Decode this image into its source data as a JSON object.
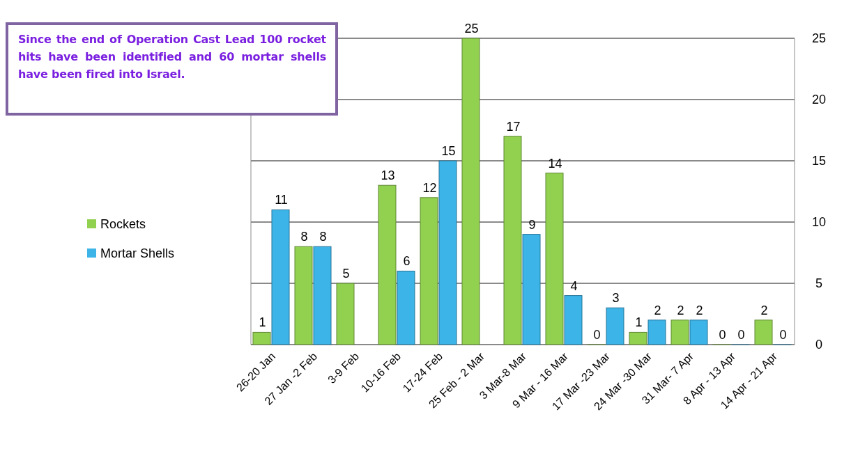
{
  "chart_data": {
    "type": "bar",
    "categories": [
      "26-20 Jan",
      "27 Jan -2 Feb",
      "3-9 Feb",
      "10-16 Feb",
      "17-24 Feb",
      "25 Feb - 2 Mar",
      "3 Mar-8 Mar",
      "9 Mar - 16 Mar",
      "17 Mar -23 Mar",
      "24 Mar -30 Mar",
      "31 Mar- 7 Apr",
      "8 Apr - 13 Apr",
      "14 Apr - 21 Apr"
    ],
    "series": [
      {
        "name": "Rockets",
        "color": "#92d050",
        "values": [
          1,
          8,
          5,
          13,
          12,
          25,
          17,
          14,
          0,
          1,
          2,
          0,
          2
        ]
      },
      {
        "name": "Mortar Shells",
        "color": "#3cb4e8",
        "values": [
          11,
          8,
          null,
          6,
          15,
          null,
          9,
          4,
          3,
          2,
          2,
          0,
          0
        ]
      }
    ],
    "ylim": [
      0,
      25
    ],
    "yticks": [
      0,
      5,
      10,
      15,
      20,
      25
    ],
    "grid": "y",
    "legend": "left",
    "data_labels": true,
    "annotations": [
      "Since the end of Operation Cast Lead 100 rocket hits have been identified and 60 mortar shells have been fired into Israel."
    ]
  }
}
